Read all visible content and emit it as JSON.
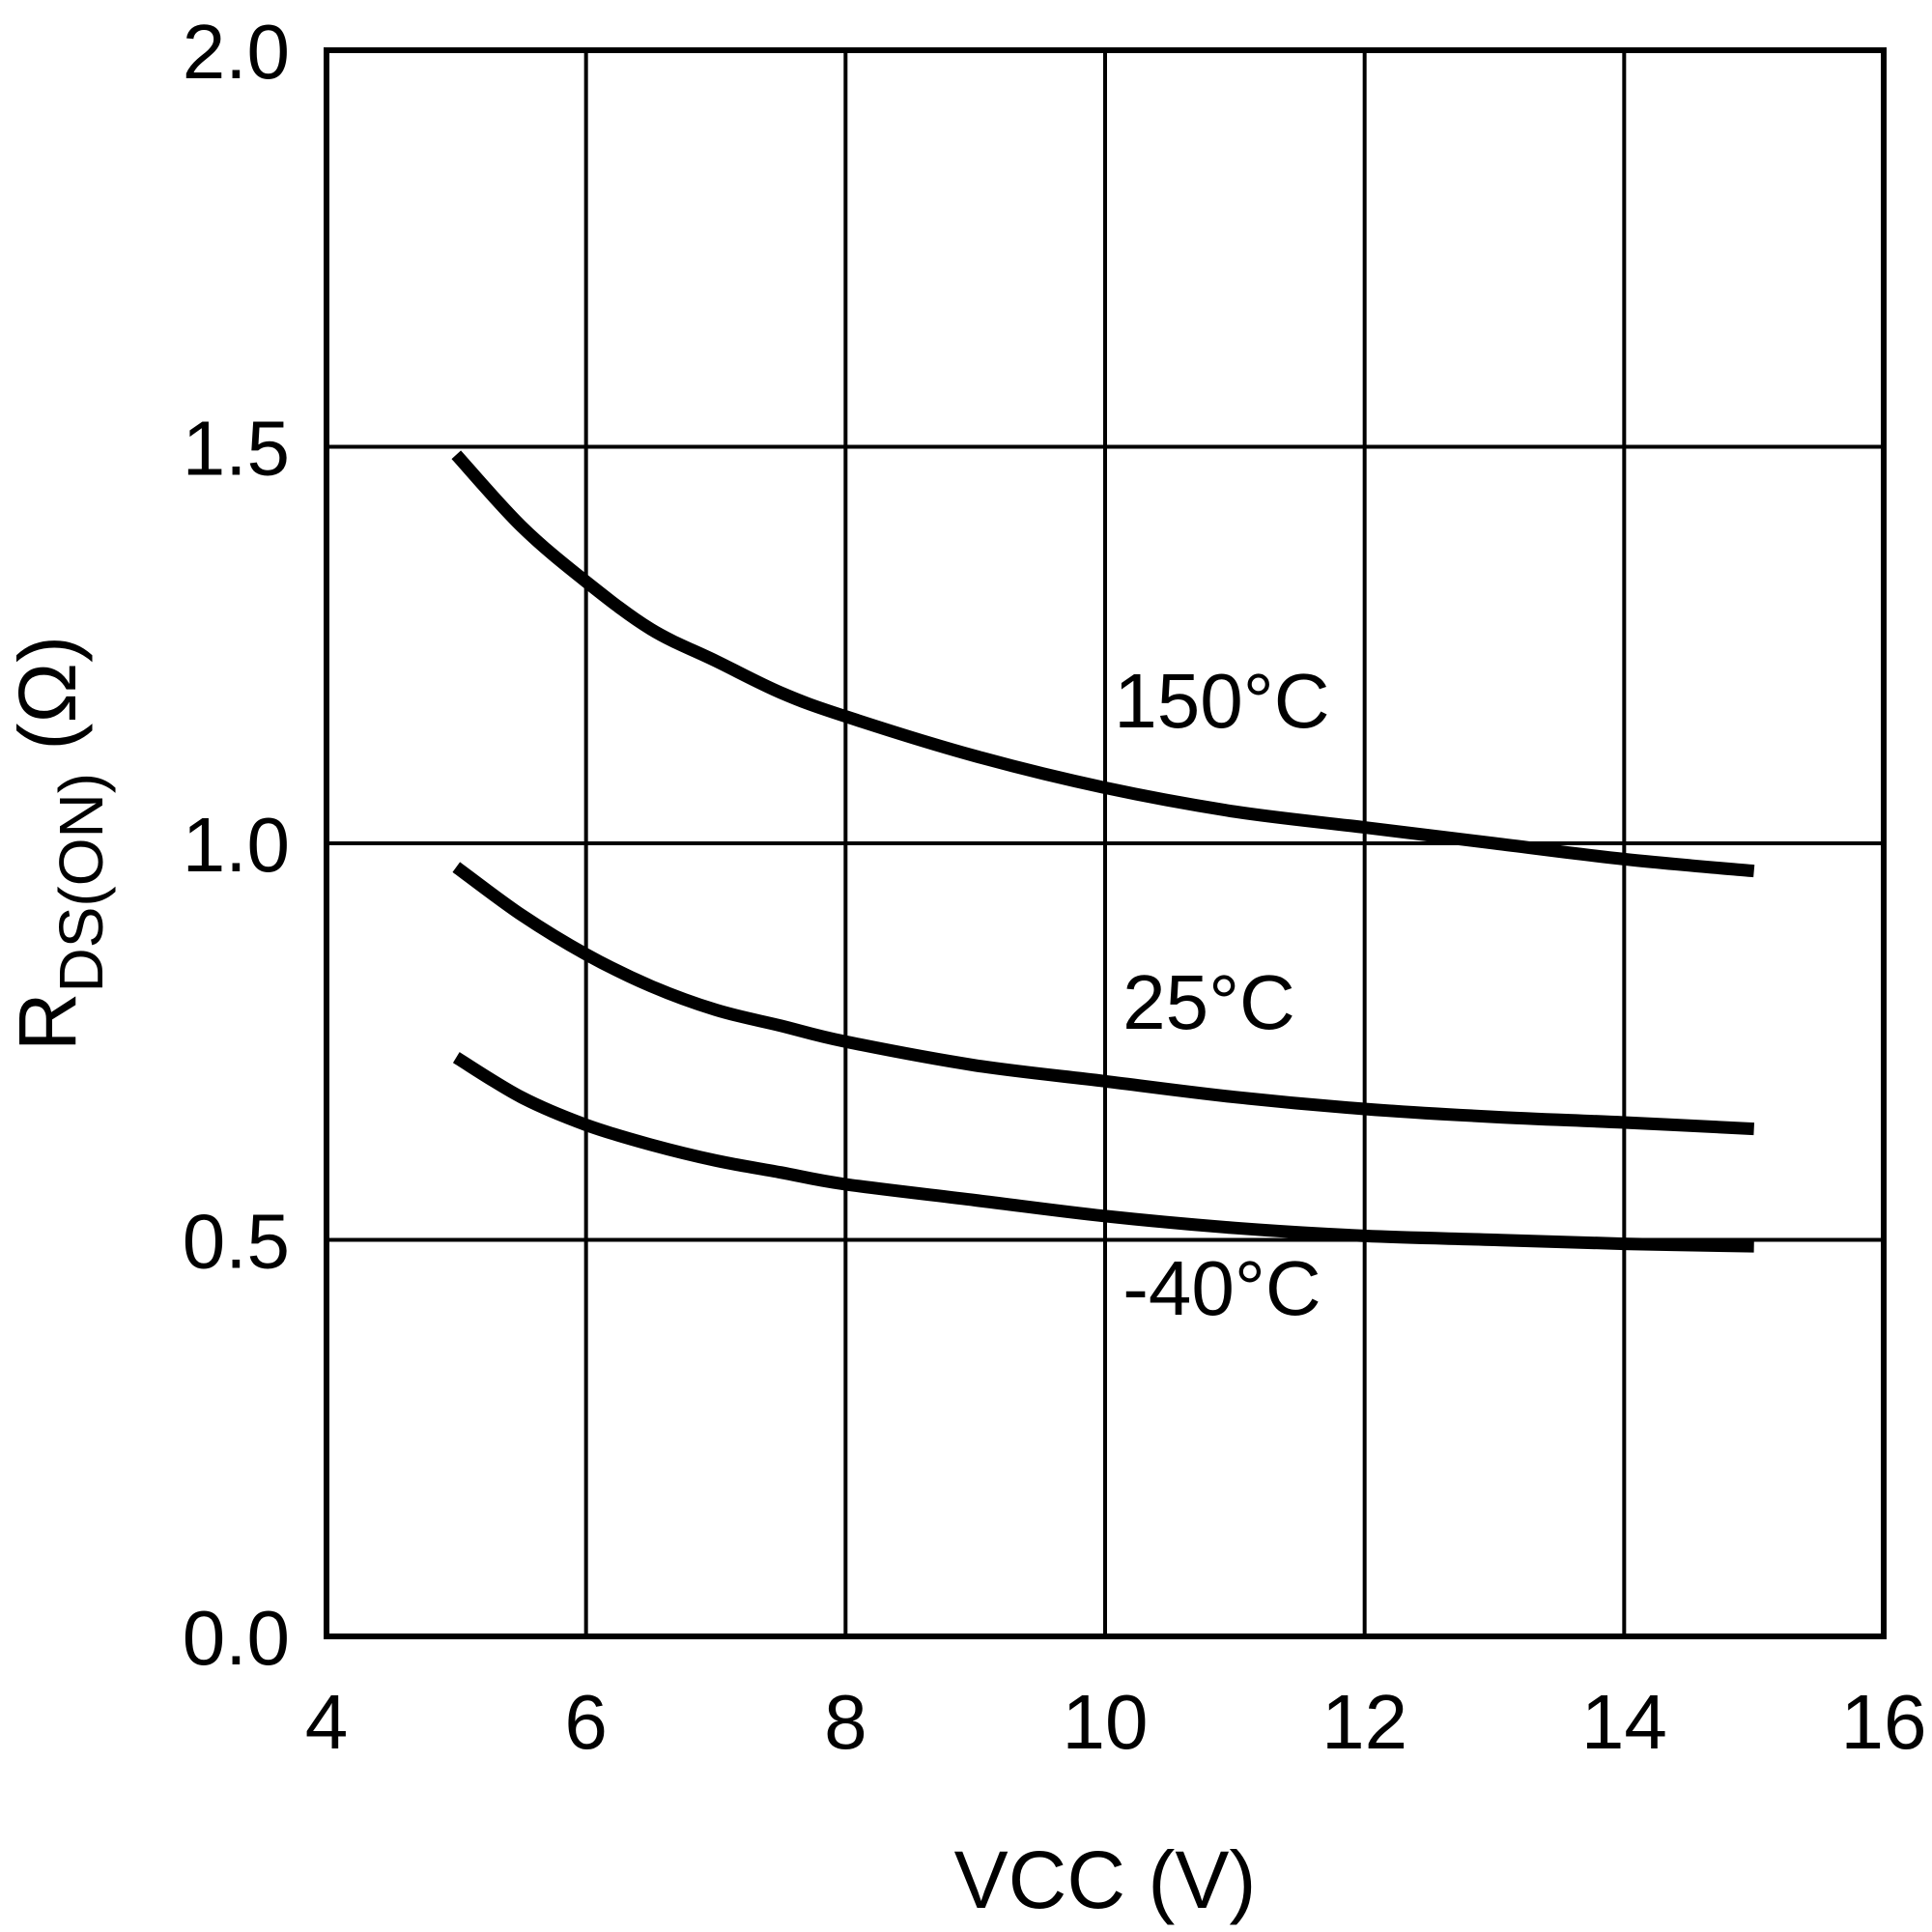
{
  "chart_data": {
    "type": "line",
    "title": "",
    "xlabel": "VCC (V)",
    "ylabel": {
      "main": "R",
      "subscript": "DS(ON)",
      "unit": " (Ω)"
    },
    "xlim": [
      4,
      16
    ],
    "ylim": [
      0.0,
      2.0
    ],
    "xticks": [
      4,
      6,
      8,
      10,
      12,
      14,
      16
    ],
    "xtick_labels": [
      "4",
      "6",
      "8",
      "10",
      "12",
      "14",
      "16"
    ],
    "yticks": [
      0.0,
      0.5,
      1.0,
      1.5,
      2.0
    ],
    "ytick_labels": [
      "0.0",
      "0.5",
      "1.0",
      "1.5",
      "2.0"
    ],
    "grid": true,
    "line_color": "#000000",
    "series": [
      {
        "name": "150°C",
        "x": [
          5,
          5.5,
          6,
          6.5,
          7,
          7.5,
          8,
          9,
          10,
          11,
          12,
          13,
          14,
          15
        ],
        "y": [
          1.49,
          1.4,
          1.33,
          1.27,
          1.23,
          1.19,
          1.16,
          1.11,
          1.07,
          1.04,
          1.02,
          1.0,
          0.98,
          0.965
        ],
        "label_at": [
          10.9,
          1.18
        ]
      },
      {
        "name": "25°C",
        "x": [
          5,
          5.5,
          6,
          6.5,
          7,
          7.5,
          8,
          9,
          10,
          11,
          12,
          13,
          14,
          15
        ],
        "y": [
          0.97,
          0.91,
          0.86,
          0.82,
          0.79,
          0.77,
          0.75,
          0.72,
          0.7,
          0.68,
          0.665,
          0.655,
          0.648,
          0.64
        ],
        "label_at": [
          10.8,
          0.8
        ]
      },
      {
        "name": "-40°C",
        "x": [
          5,
          5.5,
          6,
          6.5,
          7,
          7.5,
          8,
          9,
          10,
          11,
          12,
          13,
          14,
          15
        ],
        "y": [
          0.73,
          0.68,
          0.645,
          0.62,
          0.6,
          0.585,
          0.57,
          0.55,
          0.53,
          0.515,
          0.505,
          0.5,
          0.495,
          0.492
        ],
        "label_at": [
          10.9,
          0.44
        ]
      }
    ]
  }
}
